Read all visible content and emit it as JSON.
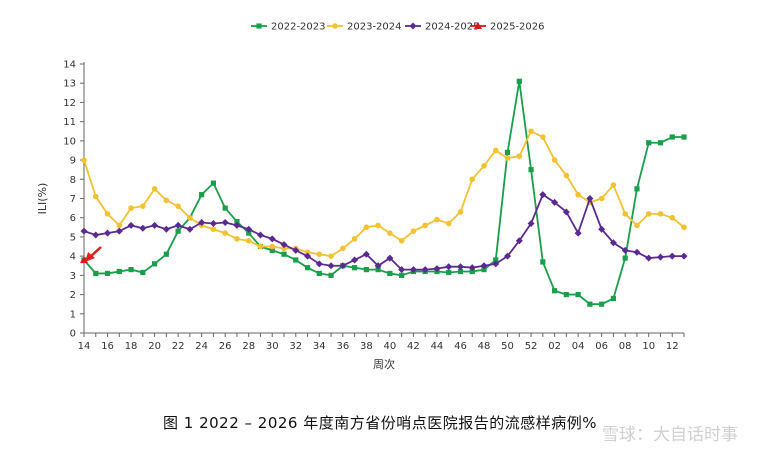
{
  "caption": "图 1   2022 – 2026 年度南方省份哨点医院报告的流感样病例%",
  "watermark": "雪球：大自话时事",
  "chart_data": {
    "type": "line",
    "xlabel": "周次",
    "ylabel": "ILI(%)",
    "ylim": [
      0,
      14
    ],
    "y_ticks": [
      0,
      1,
      2,
      3,
      4,
      5,
      6,
      7,
      8,
      9,
      10,
      11,
      12,
      13,
      14
    ],
    "x_tick_labels": [
      "14",
      "16",
      "18",
      "20",
      "22",
      "24",
      "26",
      "28",
      "30",
      "32",
      "34",
      "36",
      "38",
      "40",
      "42",
      "44",
      "46",
      "48",
      "50",
      "52",
      "02",
      "04",
      "06",
      "08",
      "10",
      "12"
    ],
    "weeks": [
      "14",
      "15",
      "16",
      "17",
      "18",
      "19",
      "20",
      "21",
      "22",
      "23",
      "24",
      "25",
      "26",
      "27",
      "28",
      "29",
      "30",
      "31",
      "32",
      "33",
      "34",
      "35",
      "36",
      "37",
      "38",
      "39",
      "40",
      "41",
      "42",
      "43",
      "44",
      "45",
      "46",
      "47",
      "48",
      "49",
      "50",
      "51",
      "52",
      "01",
      "02",
      "03",
      "04",
      "05",
      "06",
      "07",
      "08",
      "09",
      "10",
      "11",
      "12",
      "13"
    ],
    "grid": false,
    "legend_position": "top-center",
    "series": [
      {
        "name": "2022-2023",
        "color": "#1a9e4a",
        "marker": "square",
        "values": [
          3.8,
          3.1,
          3.1,
          3.2,
          3.3,
          3.15,
          3.6,
          4.1,
          5.3,
          6.0,
          7.2,
          7.8,
          6.5,
          5.8,
          5.2,
          4.5,
          4.3,
          4.1,
          3.8,
          3.4,
          3.1,
          3.0,
          3.5,
          3.4,
          3.3,
          3.3,
          3.1,
          3.0,
          3.2,
          3.2,
          3.2,
          3.15,
          3.2,
          3.2,
          3.3,
          3.8,
          9.4,
          13.1,
          8.5,
          3.7,
          2.2,
          2.0,
          2.0,
          1.5,
          1.5,
          1.8,
          3.9,
          7.5,
          9.9,
          9.9,
          10.2,
          10.2
        ]
      },
      {
        "name": "2023-2024",
        "color": "#f2c232",
        "marker": "circle",
        "values": [
          9.0,
          7.1,
          6.2,
          5.6,
          6.5,
          6.6,
          7.5,
          6.9,
          6.6,
          6.0,
          5.6,
          5.4,
          5.2,
          4.9,
          4.8,
          4.5,
          4.5,
          4.4,
          4.4,
          4.2,
          4.1,
          4.0,
          4.4,
          4.9,
          5.5,
          5.6,
          5.2,
          4.8,
          5.3,
          5.6,
          5.9,
          5.7,
          6.3,
          8.0,
          8.7,
          9.5,
          9.1,
          9.2,
          10.5,
          10.2,
          9.0,
          8.2,
          7.2,
          6.8,
          7.0,
          7.7,
          6.2,
          5.6,
          6.2,
          6.2,
          6.0,
          5.5
        ]
      },
      {
        "name": "2024-2025",
        "color": "#5b2a91",
        "marker": "diamond",
        "values": [
          5.3,
          5.1,
          5.2,
          5.3,
          5.6,
          5.45,
          5.6,
          5.4,
          5.6,
          5.4,
          5.75,
          5.7,
          5.75,
          5.6,
          5.4,
          5.1,
          4.9,
          4.6,
          4.3,
          4.0,
          3.6,
          3.5,
          3.5,
          3.8,
          4.1,
          3.5,
          3.9,
          3.3,
          3.3,
          3.3,
          3.35,
          3.45,
          3.45,
          3.4,
          3.5,
          3.6,
          4.0,
          4.8,
          5.7,
          7.2,
          6.8,
          6.3,
          5.2,
          7.0,
          5.4,
          4.7,
          4.3,
          4.2,
          3.9,
          3.95,
          4.0,
          4.0
        ]
      },
      {
        "name": "2025-2026",
        "color": "#d7191c",
        "marker": "triangle",
        "values": [
          3.8
        ]
      }
    ]
  }
}
